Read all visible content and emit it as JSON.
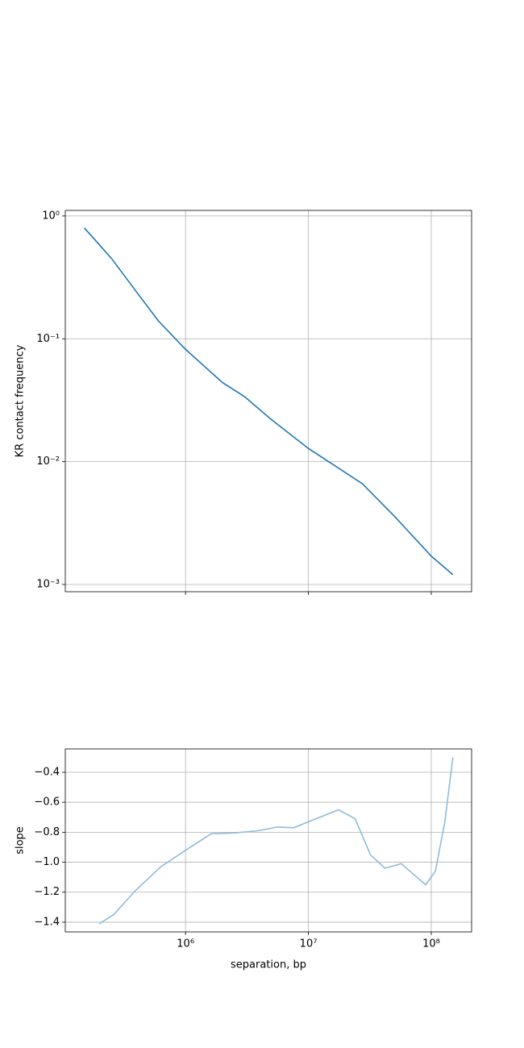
{
  "chart_data": [
    {
      "type": "line",
      "ylabel": "KR contact frequency",
      "xscale": "log",
      "yscale": "log",
      "grid": true,
      "xlim": [
        105000,
        213000000
      ],
      "ylim": [
        0.000873,
        1.11
      ],
      "xticks": [
        1000000,
        10000000,
        100000000
      ],
      "xtick_labels": false,
      "yticks": [
        {
          "value": 1,
          "label": "10⁰"
        },
        {
          "value": 0.1,
          "label": "10⁻¹"
        },
        {
          "value": 0.01,
          "label": "10⁻²"
        },
        {
          "value": 0.001,
          "label": "10⁻³"
        }
      ],
      "series": [
        {
          "color": "#1f77b4",
          "x": [
            150000,
            250000,
            400000,
            600000,
            1000000,
            2000000,
            3000000,
            5000000,
            10000000,
            17500000,
            27500000,
            50000000,
            100000000,
            150000000
          ],
          "values": [
            0.8,
            0.45,
            0.24,
            0.14,
            0.082,
            0.044,
            0.034,
            0.022,
            0.0128,
            0.0089,
            0.0066,
            0.0036,
            0.0017,
            0.0012
          ]
        }
      ]
    },
    {
      "type": "line",
      "xlabel": "separation, bp",
      "ylabel": "slope",
      "xscale": "log",
      "grid": true,
      "xlim": [
        105000,
        213000000
      ],
      "ylim": [
        -1.465,
        -0.244
      ],
      "xticks": [
        {
          "value": 1000000,
          "label": "10⁶"
        },
        {
          "value": 10000000,
          "label": "10⁷"
        },
        {
          "value": 100000000,
          "label": "10⁸"
        }
      ],
      "xtick_labels": true,
      "yticks": [
        {
          "value": -0.4,
          "label": "−0.4"
        },
        {
          "value": -0.6,
          "label": "−0.6"
        },
        {
          "value": -0.8,
          "label": "−0.8"
        },
        {
          "value": -1.0,
          "label": "−1.0"
        },
        {
          "value": -1.2,
          "label": "−1.2"
        },
        {
          "value": -1.4,
          "label": "−1.4"
        }
      ],
      "series": [
        {
          "color": "#8fbbd9",
          "x": [
            199000,
            260000,
            390000,
            630000,
            1000000,
            1620000,
            2470000,
            3900000,
            5600000,
            7600000,
            10000000,
            17600000,
            24000000,
            32000000,
            42000000,
            57000000,
            74000000,
            90000000,
            108000000,
            129000000,
            150000000
          ],
          "values": [
            -1.41,
            -1.35,
            -1.19,
            -1.03,
            -0.92,
            -0.81,
            -0.805,
            -0.79,
            -0.765,
            -0.77,
            -0.73,
            -0.65,
            -0.71,
            -0.95,
            -1.04,
            -1.01,
            -1.09,
            -1.15,
            -1.06,
            -0.73,
            -0.3
          ]
        }
      ]
    }
  ]
}
